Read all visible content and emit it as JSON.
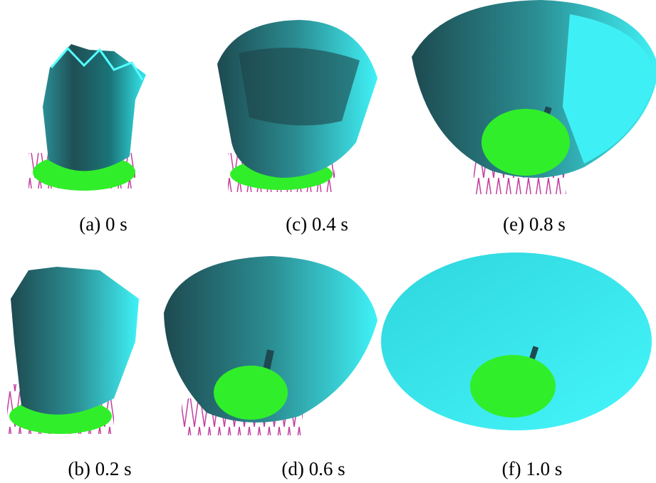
{
  "panels": [
    {
      "label": "(a) 0 s"
    },
    {
      "label": "(c) 0.4 s"
    },
    {
      "label": "(e) 0.8 s"
    },
    {
      "label": "(b) 0.2 s"
    },
    {
      "label": "(d) 0.6 s"
    },
    {
      "label": "(f) 1.0 s"
    }
  ]
}
